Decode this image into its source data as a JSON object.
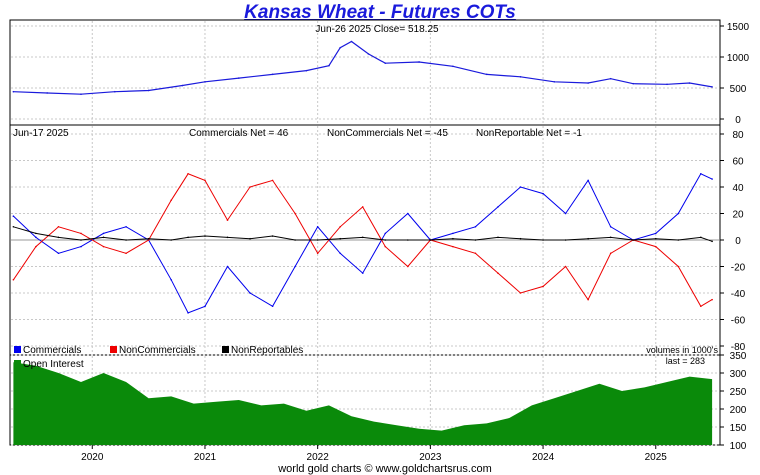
{
  "title": "Kansas Wheat - Futures COTs",
  "footer": "world gold charts © www.goldchartsrus.com",
  "colors": {
    "price": "#1a1adc",
    "commercials": "#0000ee",
    "noncommercials": "#ee0000",
    "nonreportables": "#000000",
    "open_interest": "#0a8a0a",
    "grid": "#c8c8c8",
    "title": "#1a1adc"
  },
  "chart_data": [
    {
      "type": "line",
      "panel": "price",
      "annotation": "Jun-26  2025    Close= 518.25",
      "ylim": [
        0,
        1500
      ],
      "y_ticks": [
        "1500",
        "1000",
        "500",
        "0"
      ],
      "x": [
        2019.3,
        2019.6,
        2019.9,
        2020.2,
        2020.5,
        2020.8,
        2021.0,
        2021.3,
        2021.6,
        2021.9,
        2022.1,
        2022.2,
        2022.3,
        2022.45,
        2022.6,
        2022.9,
        2023.2,
        2023.5,
        2023.8,
        2024.1,
        2024.4,
        2024.6,
        2024.8,
        2025.1,
        2025.3,
        2025.5
      ],
      "values": [
        440,
        420,
        400,
        440,
        460,
        540,
        600,
        660,
        720,
        780,
        860,
        1150,
        1250,
        1050,
        900,
        920,
        850,
        720,
        680,
        600,
        580,
        650,
        570,
        560,
        580,
        518
      ]
    },
    {
      "type": "line",
      "panel": "cot",
      "annotation_date": "Jun-17  2025",
      "annotations": [
        "Commercials Net = 46",
        "NonCommercials Net = -45",
        "NonReportable Net = -1"
      ],
      "ylim": [
        -80,
        80
      ],
      "y_ticks": [
        "80",
        "60",
        "40",
        "20",
        "0",
        "-20",
        "-40",
        "-60",
        "-80"
      ],
      "legend": [
        "Commercials",
        "NonCommercials",
        "NonReportables"
      ],
      "units_note": "volumes in 1000's",
      "x": [
        2019.3,
        2019.5,
        2019.7,
        2019.9,
        2020.1,
        2020.3,
        2020.5,
        2020.7,
        2020.85,
        2021.0,
        2021.2,
        2021.4,
        2021.6,
        2021.8,
        2022.0,
        2022.2,
        2022.4,
        2022.6,
        2022.8,
        2023.0,
        2023.2,
        2023.4,
        2023.6,
        2023.8,
        2024.0,
        2024.2,
        2024.4,
        2024.6,
        2024.8,
        2025.0,
        2025.2,
        2025.4,
        2025.5
      ],
      "series": [
        {
          "name": "Commercials",
          "values": [
            18,
            2,
            -10,
            -5,
            5,
            10,
            0,
            -30,
            -55,
            -50,
            -20,
            -40,
            -50,
            -20,
            10,
            -10,
            -25,
            5,
            20,
            0,
            5,
            10,
            25,
            40,
            35,
            20,
            45,
            10,
            0,
            5,
            20,
            50,
            46
          ]
        },
        {
          "name": "NonCommercials",
          "values": [
            -30,
            -5,
            10,
            5,
            -5,
            -10,
            0,
            30,
            50,
            45,
            15,
            40,
            45,
            20,
            -10,
            10,
            25,
            -5,
            -20,
            0,
            -5,
            -10,
            -25,
            -40,
            -35,
            -20,
            -45,
            -10,
            0,
            -5,
            -20,
            -50,
            -45
          ]
        },
        {
          "name": "NonReportables",
          "values": [
            10,
            5,
            2,
            0,
            2,
            0,
            1,
            0,
            2,
            3,
            2,
            1,
            3,
            0,
            0,
            1,
            2,
            0,
            0,
            0,
            1,
            0,
            2,
            1,
            0,
            0,
            1,
            2,
            0,
            1,
            0,
            2,
            -1
          ]
        }
      ]
    },
    {
      "type": "area",
      "panel": "open_interest",
      "legend": [
        "Open Interest"
      ],
      "last_label": "last = 283",
      "ylim": [
        100,
        350
      ],
      "y_ticks": [
        "350",
        "300",
        "250",
        "200",
        "150",
        "100"
      ],
      "x": [
        2019.3,
        2019.5,
        2019.7,
        2019.9,
        2020.1,
        2020.3,
        2020.5,
        2020.7,
        2020.9,
        2021.1,
        2021.3,
        2021.5,
        2021.7,
        2021.9,
        2022.1,
        2022.3,
        2022.5,
        2022.7,
        2022.9,
        2023.1,
        2023.3,
        2023.5,
        2023.7,
        2023.9,
        2024.1,
        2024.3,
        2024.5,
        2024.7,
        2024.9,
        2025.1,
        2025.3,
        2025.5
      ],
      "values": [
        330,
        320,
        300,
        275,
        300,
        275,
        230,
        235,
        215,
        220,
        225,
        210,
        215,
        195,
        210,
        180,
        165,
        155,
        145,
        140,
        155,
        160,
        175,
        210,
        230,
        250,
        270,
        250,
        260,
        275,
        290,
        283
      ]
    }
  ],
  "x_axis": {
    "range": [
      2019.27,
      2025.57
    ],
    "ticks": [
      {
        "label": "2020",
        "pos": 2020.0
      },
      {
        "label": "2021",
        "pos": 2021.0
      },
      {
        "label": "2022",
        "pos": 2022.0
      },
      {
        "label": "2023",
        "pos": 2023.0
      },
      {
        "label": "2024",
        "pos": 2024.0
      },
      {
        "label": "2025",
        "pos": 2025.0
      }
    ]
  }
}
